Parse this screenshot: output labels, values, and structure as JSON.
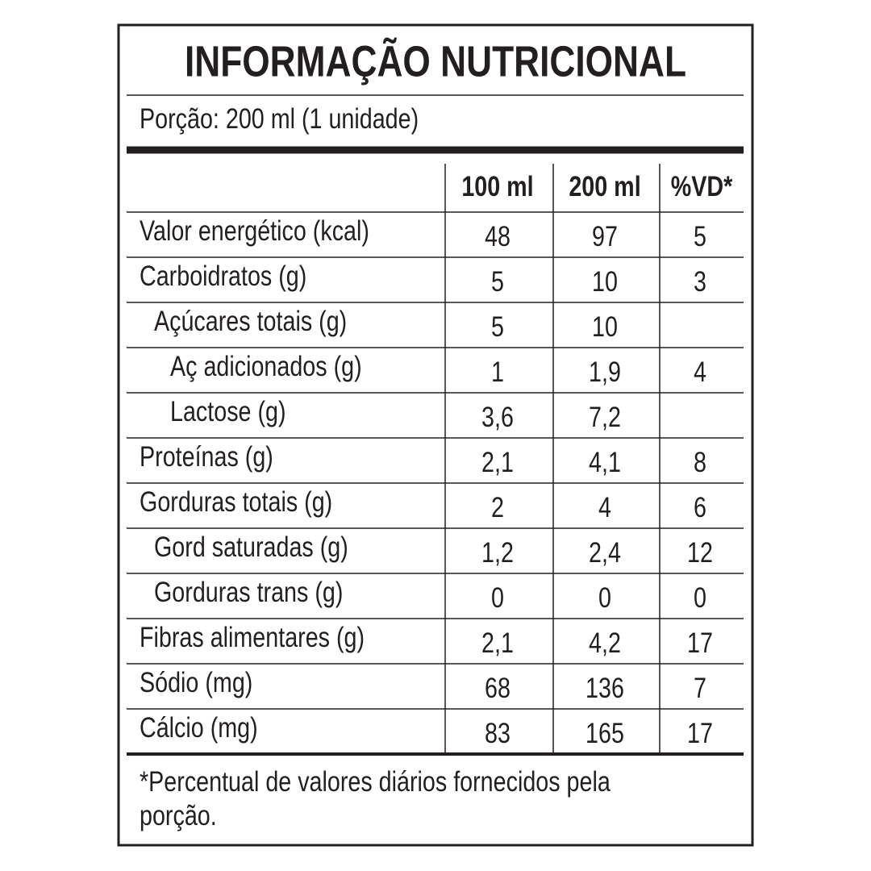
{
  "header": {
    "title": "INFORMAÇÃO NUTRICIONAL",
    "portion": "Porção: 200 ml (1 unidade)"
  },
  "table": {
    "columns": [
      "100 ml",
      "200 ml",
      "%VD*"
    ],
    "rows": [
      {
        "label": "Valor energético (kcal)",
        "cells": [
          "48",
          "97",
          "5"
        ]
      },
      {
        "label": "Carboidratos (g)",
        "cells": [
          "5",
          "10",
          "3"
        ]
      },
      {
        "label": "Açúcares totais (g)",
        "cells": [
          "5",
          "10",
          null
        ]
      },
      {
        "label": "Aç adicionados (g)",
        "cells": [
          "1",
          "1,9",
          "4"
        ]
      },
      {
        "label": "Lactose (g)",
        "cells": [
          "3,6",
          "7,2",
          null
        ]
      },
      {
        "label": "Proteínas (g)",
        "cells": [
          "2,1",
          "4,1",
          "8"
        ]
      },
      {
        "label": "Gorduras totais (g)",
        "cells": [
          "2",
          "4",
          "6"
        ]
      },
      {
        "label": "Gord saturadas (g)",
        "cells": [
          "1,2",
          "2,4",
          "12"
        ]
      },
      {
        "label": "Gorduras trans (g)",
        "cells": [
          "0",
          "0",
          "0"
        ]
      },
      {
        "label": "Fibras alimentares (g)",
        "cells": [
          "2,1",
          "4,2",
          "17"
        ]
      },
      {
        "label": "Sódio (mg)",
        "cells": [
          "68",
          "136",
          "7"
        ]
      },
      {
        "label": "Cálcio (mg)",
        "cells": [
          "83",
          "165",
          "17"
        ]
      }
    ]
  },
  "footnote": {
    "lines": [
      "*Percentual de valores diários fornecidos pela",
      "porção."
    ]
  }
}
